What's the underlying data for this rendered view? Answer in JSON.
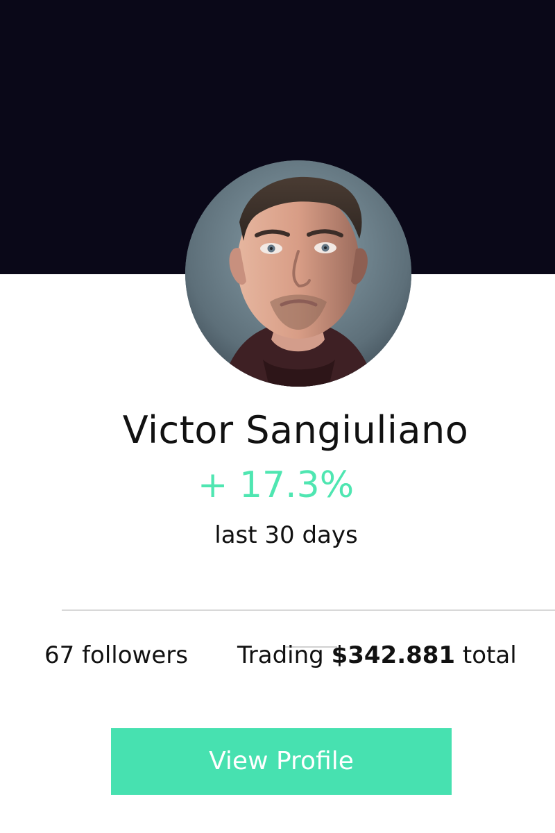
{
  "profile": {
    "name": "Victor Sangiuliano",
    "change": "+ 17.3%",
    "period": "last 30 days",
    "followers": "67 followers",
    "trading_prefix": "Trading ",
    "trading_amount": "$342.881",
    "trading_suffix": " total",
    "avatar_icon": "person-portrait-icon"
  },
  "actions": {
    "view_profile": "View Profile"
  },
  "colors": {
    "header_background": "#0a0818",
    "accent_green": "#4fe6b1",
    "button_background": "#47e1b0",
    "button_text": "#ffffff"
  }
}
